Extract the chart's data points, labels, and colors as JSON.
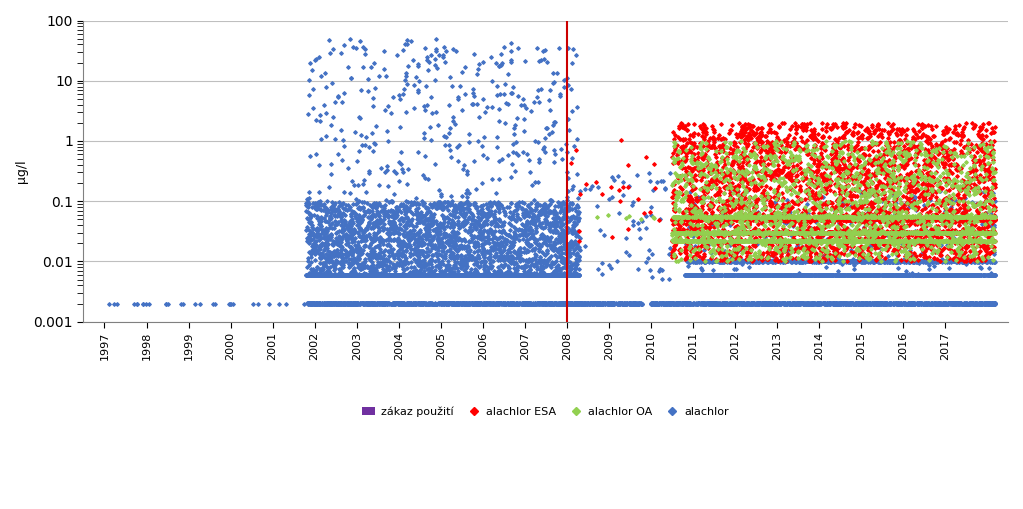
{
  "title": "",
  "ylabel": "μg/l",
  "xlim_min": 1996.5,
  "xlim_max": 2018.5,
  "ylim_min": 0.001,
  "ylim_max": 100,
  "xtick_labels": [
    "1997",
    "1998",
    "1999",
    "2000",
    "2001",
    "2002",
    "2003",
    "2004",
    "2005",
    "2006",
    "2007",
    "2008",
    "2009",
    "2010",
    "2011",
    "2012",
    "2013",
    "2014",
    "2015",
    "2016",
    "2017"
  ],
  "xtick_values": [
    1997,
    1998,
    1999,
    2000,
    2001,
    2002,
    2003,
    2004,
    2005,
    2006,
    2007,
    2008,
    2009,
    2010,
    2011,
    2012,
    2013,
    2014,
    2015,
    2016,
    2017
  ],
  "vline_x": 2008.0,
  "vline_color": "#cc0000",
  "color_blue": "#4472C4",
  "color_red": "#FF0000",
  "color_green": "#92D050",
  "color_purple": "#7030A0",
  "legend_labels": [
    "zákaz použití",
    "alachlor ESA",
    "alachlor OA",
    "alachlor"
  ],
  "background_color": "#ffffff",
  "grid_color": "#bfbfbf",
  "marker_size": 3,
  "seed": 42,
  "det_limit_blue1": 0.002,
  "det_limit_blue2": 0.006,
  "det_limit_blue3": 0.01,
  "det_limit_red1": 0.03,
  "det_limit_red2": 0.05,
  "det_limit_green1": 0.022,
  "det_limit_green2": 0.03
}
